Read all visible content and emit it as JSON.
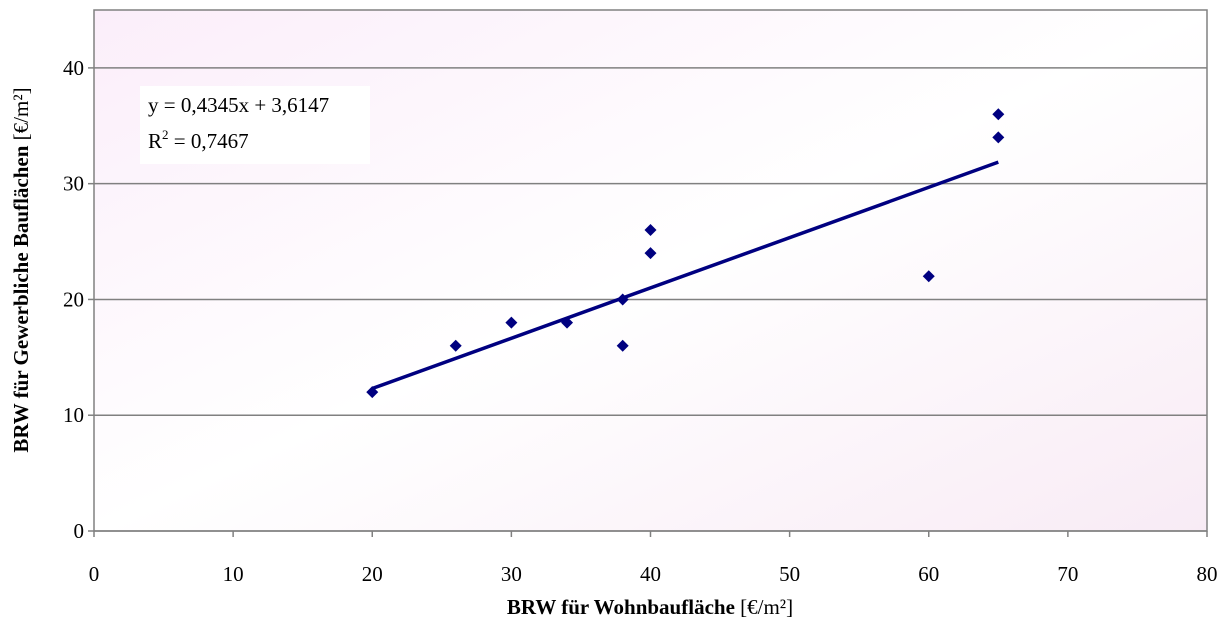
{
  "chart_data": {
    "type": "scatter",
    "x_label": {
      "main": "BRW für Wohnbaufläche",
      "unit": "[€/m²]"
    },
    "y_label": {
      "main": "BRW für Gewerbliche Bauflächen",
      "unit": "[€/m²]"
    },
    "series": [
      {
        "color": "#000080",
        "x": [
          20,
          26,
          30,
          34,
          38,
          38,
          40,
          40,
          60,
          65,
          65
        ],
        "values": [
          12,
          16,
          18,
          18,
          20,
          16,
          26,
          24,
          22,
          36,
          34
        ]
      }
    ],
    "trendline": {
      "slope": 0.4345,
      "intercept": 3.6147,
      "x_range": [
        20,
        65
      ],
      "color": "#000080",
      "equation": "y = 0,4345x + 3,6147",
      "r2_base": "R",
      "r2_sup": "2",
      "r2_rest": " = 0,7467"
    },
    "xlim": [
      0,
      80
    ],
    "xticks": [
      0,
      10,
      20,
      30,
      40,
      50,
      60,
      70,
      80
    ],
    "ylim": [
      0,
      45
    ],
    "yticks": [
      0,
      10,
      20,
      30,
      40
    ],
    "grid": true
  }
}
